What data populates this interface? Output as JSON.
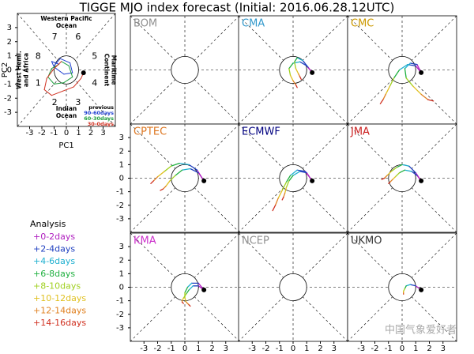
{
  "chart_data": {
    "type": "mjo",
    "title": "TIGGE MJO index forecast (Initial: 2016.06.28.12UTC)",
    "xlim": [
      -4,
      4
    ],
    "ylim": [
      -4,
      4
    ],
    "xticks": [
      -3,
      -2,
      -1,
      0,
      1,
      2,
      3
    ],
    "yticks": [
      -3,
      -2,
      -1,
      0,
      1,
      2,
      3
    ],
    "initial": {
      "x": 1.4,
      "y": -0.2
    },
    "legend_title": "Analysis",
    "bins": [
      {
        "label": "+0-2days",
        "color": "#b020c0"
      },
      {
        "label": "+2-4days",
        "color": "#2040c0"
      },
      {
        "label": "+4-6days",
        "color": "#20b0d0"
      },
      {
        "label": "+6-8days",
        "color": "#20b040"
      },
      {
        "label": "+8-10days",
        "color": "#a0d020"
      },
      {
        "label": "+10-12days",
        "color": "#e0c020"
      },
      {
        "label": "+12-14days",
        "color": "#e08020"
      },
      {
        "label": "+14-16days",
        "color": "#d03020"
      }
    ],
    "analysis": {
      "xlabel": "PC1",
      "ylabel": "PC2",
      "phases": [
        "1",
        "2",
        "3",
        "4",
        "5",
        "6",
        "7",
        "8"
      ],
      "regions": [
        [
          "Western Pacific",
          "Ocean"
        ],
        [
          "Maritime",
          "Continent"
        ],
        [
          "Indian",
          "Ocean"
        ],
        [
          "West Hemi.",
          "and Africa"
        ]
      ],
      "previous_title": "previous",
      "series": [
        {
          "name": "90-60days",
          "color": "#2040d0",
          "x": [
            -1,
            -0.5,
            0.3,
            0.5,
            -0.2,
            -1.0,
            -1.2,
            -0.6
          ],
          "y": [
            0.3,
            0.8,
            0.5,
            -0.2,
            -0.3,
            0.2,
            0.6,
            0.4
          ]
        },
        {
          "name": "60-30days",
          "color": "#20a040",
          "x": [
            -0.6,
            -1.2,
            -1.5,
            -1.0,
            -0.2,
            0.5,
            0.2,
            -0.4
          ],
          "y": [
            0.4,
            0.1,
            -0.5,
            -1.0,
            -0.9,
            -0.5,
            0.3,
            0.6
          ]
        },
        {
          "name": "30-0days",
          "color": "#d03020",
          "x": [
            -0.4,
            -1.0,
            -1.6,
            -1.8,
            -1.2,
            -0.3,
            0.6,
            1.2,
            1.4
          ],
          "y": [
            0.6,
            0.1,
            -0.6,
            -1.4,
            -1.8,
            -1.5,
            -1.2,
            -0.6,
            -0.2
          ]
        }
      ]
    },
    "panels": [
      {
        "name": "BOM",
        "color": "#909090",
        "tracks": []
      },
      {
        "name": "CMA",
        "color": "#3399cc",
        "tracks": [
          {
            "x": [
              1.4,
              1.0,
              0.5,
              0.0,
              -0.3,
              -0.2,
              0.0,
              0.2,
              0.3
            ],
            "y": [
              -0.2,
              0.3,
              0.6,
              0.5,
              0.1,
              -0.4,
              -0.8,
              -1.1,
              -1.3
            ]
          },
          {
            "x": [
              1.4,
              1.1,
              0.7,
              0.3,
              0.1,
              0.2,
              0.4,
              0.5,
              0.6
            ],
            "y": [
              -0.2,
              0.2,
              0.7,
              0.9,
              0.6,
              0.1,
              -0.3,
              -0.5,
              -0.7
            ]
          }
        ]
      },
      {
        "name": "CMC",
        "color": "#cc9900",
        "tracks": [
          {
            "x": [
              1.4,
              1.0,
              0.4,
              -0.2,
              -0.6,
              -0.9,
              -1.2,
              -1.4,
              -1.6
            ],
            "y": [
              -0.2,
              0.3,
              0.4,
              0,
              -0.6,
              -1.2,
              -1.8,
              -2.2,
              -2.5
            ]
          },
          {
            "x": [
              1.4,
              1.1,
              0.6,
              0.2,
              0.3,
              0.8,
              1.4,
              1.9,
              2.3
            ],
            "y": [
              -0.2,
              0.4,
              0.5,
              0.1,
              -0.6,
              -1.2,
              -1.8,
              -2.2,
              -2.3
            ]
          }
        ]
      },
      {
        "name": "CPTEC",
        "color": "#dd7722",
        "tracks": [
          {
            "x": [
              1.4,
              0.9,
              0.3,
              -0.4,
              -1.0,
              -1.5,
              -2.0,
              -2.3,
              -2.5
            ],
            "y": [
              -0.2,
              0.6,
              1.0,
              1.1,
              0.9,
              0.5,
              0.1,
              -0.2,
              -0.4
            ]
          },
          {
            "x": [
              1.4,
              1.0,
              0.4,
              -0.2,
              -0.7,
              -1.1,
              -1.4,
              -1.6,
              -1.8
            ],
            "y": [
              -0.2,
              0.4,
              0.7,
              0.6,
              0.2,
              -0.2,
              -0.6,
              -0.8,
              -0.9
            ]
          }
        ]
      },
      {
        "name": "ECMWF",
        "color": "#000080",
        "tracks": [
          {
            "x": [
              1.4,
              0.9,
              0.3,
              -0.2,
              -0.5,
              -0.8,
              -1.1,
              -1.3,
              -1.5
            ],
            "y": [
              -0.2,
              0.5,
              0.6,
              0.2,
              -0.3,
              -0.9,
              -1.5,
              -2.0,
              -2.4
            ]
          },
          {
            "x": [
              1.4,
              1.0,
              0.5,
              0.0,
              -0.3,
              -0.5,
              -0.6,
              -0.7,
              -0.8
            ],
            "y": [
              -0.2,
              0.4,
              0.5,
              0.2,
              -0.2,
              -0.7,
              -1.1,
              -1.4,
              -1.6
            ]
          }
        ]
      },
      {
        "name": "JMA",
        "color": "#cc2222",
        "tracks": [
          {
            "x": [
              1.4,
              1.0,
              0.5,
              0.0,
              -0.4,
              -0.8,
              -1.1,
              -1.3,
              -1.5
            ],
            "y": [
              -0.2,
              0.4,
              0.9,
              1.0,
              0.8,
              0.5,
              0.2,
              0.0,
              -0.1
            ]
          },
          {
            "x": [
              1.4,
              1.1,
              0.7,
              0.2,
              -0.2,
              -0.5,
              -0.7,
              -0.9,
              -1.0
            ],
            "y": [
              -0.2,
              0.2,
              0.5,
              0.6,
              0.4,
              0.1,
              -0.1,
              -0.3,
              -0.4
            ]
          }
        ]
      },
      {
        "name": "KMA",
        "color": "#cc33cc",
        "tracks": [
          {
            "x": [
              1.4,
              1.0,
              0.5,
              0.2,
              0.0,
              0.0,
              0.1,
              0.3,
              0.4
            ],
            "y": [
              -0.2,
              0.3,
              0.3,
              0.0,
              -0.4,
              -0.8,
              -1.1,
              -1.3,
              -1.4
            ]
          },
          {
            "x": [
              1.4,
              1.0,
              0.6,
              0.3,
              0.1,
              -0.1,
              -0.2,
              -0.2,
              -0.1
            ],
            "y": [
              -0.2,
              0.1,
              0.1,
              -0.2,
              -0.5,
              -0.8,
              -1.0,
              -1.1,
              -1.2
            ]
          }
        ]
      },
      {
        "name": "NCEP",
        "color": "#909090",
        "tracks": []
      },
      {
        "name": "UKMO",
        "color": "#333333",
        "tracks": [
          {
            "x": [
              1.4,
              1.0,
              0.6,
              0.3,
              0.2,
              0.1,
              0.1,
              0.1,
              0.1
            ],
            "y": [
              -0.2,
              0.1,
              0.2,
              0.1,
              -0.1,
              -0.3,
              -0.4,
              -0.5,
              -0.5
            ]
          }
        ]
      }
    ],
    "watermark": "中国气象爱好者"
  }
}
